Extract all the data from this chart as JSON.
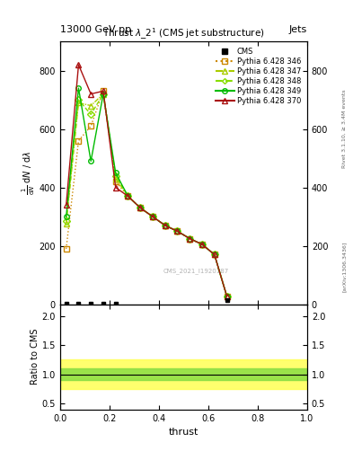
{
  "header_left": "13000 GeV pp",
  "header_right": "Jets",
  "watermark": "CMS_2021_I1920187",
  "right_label1": "Rivet 3.1.10, ≥ 3.4M events",
  "right_label2": "[arXiv:1306.3436]",
  "xlabel": "thrust",
  "ratio_ylabel": "Ratio to CMS",
  "xlim": [
    0,
    1.0
  ],
  "ylim_main": [
    0,
    900
  ],
  "ylim_ratio": [
    0.4,
    2.2
  ],
  "yticks_main": [
    0,
    200,
    400,
    600,
    800
  ],
  "yticks_ratio": [
    0.5,
    1.0,
    1.5,
    2.0
  ],
  "cms_x_plot": [
    0.025,
    0.075,
    0.125,
    0.175,
    0.225,
    0.675
  ],
  "cms_y_plot": [
    2,
    2,
    2,
    2,
    2,
    15
  ],
  "py346_x": [
    0.025,
    0.075,
    0.125,
    0.175,
    0.225,
    0.275,
    0.325,
    0.375,
    0.425,
    0.475,
    0.525,
    0.575,
    0.625,
    0.675
  ],
  "py346_y": [
    190,
    560,
    610,
    730,
    420,
    370,
    330,
    300,
    270,
    250,
    225,
    205,
    170,
    28
  ],
  "py347_x": [
    0.025,
    0.075,
    0.125,
    0.175,
    0.225,
    0.275,
    0.325,
    0.375,
    0.425,
    0.475,
    0.525,
    0.575,
    0.625,
    0.675
  ],
  "py347_y": [
    275,
    690,
    680,
    720,
    430,
    370,
    330,
    300,
    270,
    250,
    225,
    205,
    170,
    28
  ],
  "py348_x": [
    0.025,
    0.075,
    0.125,
    0.175,
    0.225,
    0.275,
    0.325,
    0.375,
    0.425,
    0.475,
    0.525,
    0.575,
    0.625,
    0.675
  ],
  "py348_y": [
    285,
    700,
    650,
    720,
    440,
    370,
    330,
    300,
    270,
    250,
    225,
    205,
    170,
    28
  ],
  "py349_x": [
    0.025,
    0.075,
    0.125,
    0.175,
    0.225,
    0.275,
    0.325,
    0.375,
    0.425,
    0.475,
    0.525,
    0.575,
    0.625,
    0.675
  ],
  "py349_y": [
    300,
    740,
    490,
    720,
    450,
    370,
    330,
    300,
    270,
    250,
    225,
    205,
    170,
    28
  ],
  "py370_x": [
    0.025,
    0.075,
    0.125,
    0.175,
    0.225,
    0.275,
    0.325,
    0.375,
    0.425,
    0.475,
    0.525,
    0.575,
    0.625,
    0.675
  ],
  "py370_y": [
    340,
    820,
    720,
    730,
    400,
    370,
    330,
    300,
    270,
    250,
    225,
    205,
    170,
    28
  ],
  "col346": "#cc8800",
  "col347": "#aacc00",
  "col348": "#88dd00",
  "col349": "#00bb00",
  "col370": "#aa1111",
  "ratio_band_yellow_lo": 0.75,
  "ratio_band_yellow_hi": 1.25,
  "ratio_band_green_lo": 0.9,
  "ratio_band_green_hi": 1.1,
  "background_color": "#ffffff"
}
